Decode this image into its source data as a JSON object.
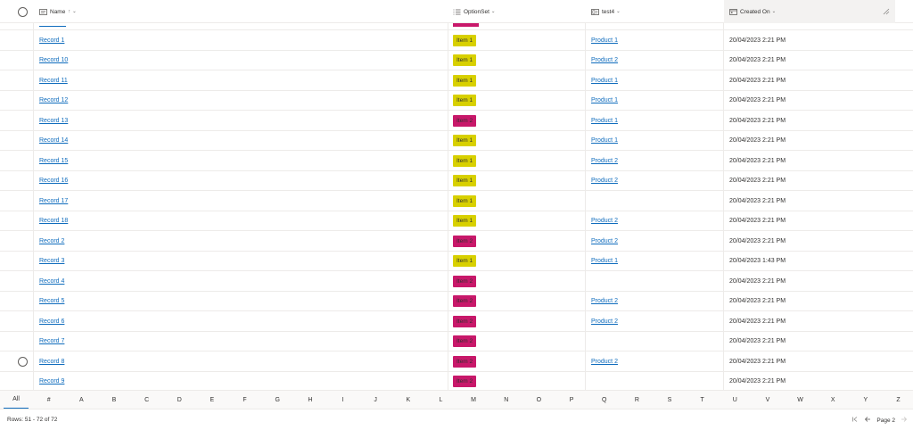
{
  "header": {
    "columns": [
      {
        "label": "Name",
        "sort_indicator": "↑",
        "chevron": "⌄",
        "icon": "text-column-icon"
      },
      {
        "label": "OptionSet",
        "chevron": "⌄",
        "icon": "list-column-icon"
      },
      {
        "label": "test4",
        "chevron": "⌄",
        "icon": "lookup-column-icon"
      },
      {
        "label": "Created On",
        "chevron": "⌄",
        "icon": "date-column-icon"
      }
    ]
  },
  "colors": {
    "item1": "#d8d000",
    "item2": "#c8186a",
    "link": "#0f6cbd"
  },
  "rows": [
    {
      "name": "Record 1",
      "option": "Item 1",
      "product": "Product 1",
      "created": "20/04/2023 2:21 PM"
    },
    {
      "name": "Record 10",
      "option": "Item 1",
      "product": "Product 2",
      "created": "20/04/2023 2:21 PM"
    },
    {
      "name": "Record 11",
      "option": "Item 1",
      "product": "Product 1",
      "created": "20/04/2023 2:21 PM"
    },
    {
      "name": "Record 12",
      "option": "Item 1",
      "product": "Product 1",
      "created": "20/04/2023 2:21 PM"
    },
    {
      "name": "Record 13",
      "option": "Item 2",
      "product": "Product 1",
      "created": "20/04/2023 2:21 PM"
    },
    {
      "name": "Record 14",
      "option": "Item 1",
      "product": "Product 1",
      "created": "20/04/2023 2:21 PM"
    },
    {
      "name": "Record 15",
      "option": "Item 1",
      "product": "Product 2",
      "created": "20/04/2023 2:21 PM"
    },
    {
      "name": "Record 16",
      "option": "Item 1",
      "product": "Product 2",
      "created": "20/04/2023 2:21 PM"
    },
    {
      "name": "Record 17",
      "option": "Item 1",
      "product": "",
      "created": "20/04/2023 2:21 PM"
    },
    {
      "name": "Record 18",
      "option": "Item 1",
      "product": "Product 2",
      "created": "20/04/2023 2:21 PM"
    },
    {
      "name": "Record 2",
      "option": "Item 2",
      "product": "Product 2",
      "created": "20/04/2023 2:21 PM"
    },
    {
      "name": "Record 3",
      "option": "Item 1",
      "product": "Product 1",
      "created": "20/04/2023 1:43 PM"
    },
    {
      "name": "Record 4",
      "option": "Item 2",
      "product": "",
      "created": "20/04/2023 2:21 PM"
    },
    {
      "name": "Record 5",
      "option": "Item 2",
      "product": "Product 2",
      "created": "20/04/2023 2:21 PM"
    },
    {
      "name": "Record 6",
      "option": "Item 2",
      "product": "Product 2",
      "created": "20/04/2023 2:21 PM"
    },
    {
      "name": "Record 7",
      "option": "Item 2",
      "product": "",
      "created": "20/04/2023 2:21 PM"
    },
    {
      "name": "Record 8",
      "option": "Item 2",
      "product": "Product 2",
      "created": "20/04/2023 2:21 PM",
      "hover": true
    },
    {
      "name": "Record 9",
      "option": "Item 2",
      "product": "",
      "created": "20/04/2023 2:21 PM"
    }
  ],
  "alphabet": [
    "All",
    "#",
    "A",
    "B",
    "C",
    "D",
    "E",
    "F",
    "G",
    "H",
    "I",
    "J",
    "K",
    "L",
    "M",
    "N",
    "O",
    "P",
    "Q",
    "R",
    "S",
    "T",
    "U",
    "V",
    "W",
    "X",
    "Y",
    "Z"
  ],
  "footer": {
    "rows_text": "Rows: 51 - 72 of 72",
    "page_label": "Page 2",
    "first_icon": "first-page-icon",
    "prev_icon": "previous-page-icon",
    "next_icon": "next-page-icon"
  }
}
